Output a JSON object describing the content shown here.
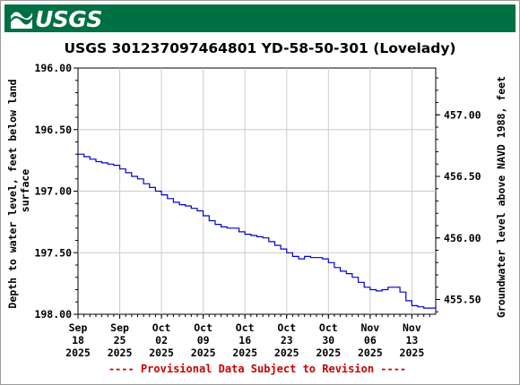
{
  "brand": {
    "logo_text": "USGS",
    "logo_icon": "usgs-wave-icon",
    "banner_color": "#006f41"
  },
  "chart_data": {
    "type": "line",
    "title": "USGS 301237097464801 YD-58-50-301 (Lovelady)",
    "ylabel_left_lines": [
      "Depth to water level, feet below land",
      "surface"
    ],
    "ylabel_right": "Groundwater level above NAVD 1988, feet",
    "footer_note": "---- Provisional Data Subject to Revision ----",
    "ylim_left": [
      196.0,
      198.0
    ],
    "y_left_inverted": true,
    "y_left_ticks": [
      "196.00",
      "196.50",
      "197.00",
      "197.50",
      "198.00"
    ],
    "ylim_right": [
      455.38,
      457.38
    ],
    "y_right_ticks": [
      "457.00",
      "456.50",
      "456.00",
      "455.50"
    ],
    "x_range": [
      "2025-09-18",
      "2025-11-17"
    ],
    "x_ticks": [
      {
        "date": "2025-09-18",
        "lines": [
          "Sep",
          "18",
          "2025"
        ]
      },
      {
        "date": "2025-09-25",
        "lines": [
          "Sep",
          "25",
          "2025"
        ]
      },
      {
        "date": "2025-10-02",
        "lines": [
          "Oct",
          "02",
          "2025"
        ]
      },
      {
        "date": "2025-10-09",
        "lines": [
          "Oct",
          "09",
          "2025"
        ]
      },
      {
        "date": "2025-10-16",
        "lines": [
          "Oct",
          "16",
          "2025"
        ]
      },
      {
        "date": "2025-10-23",
        "lines": [
          "Oct",
          "23",
          "2025"
        ]
      },
      {
        "date": "2025-10-30",
        "lines": [
          "Oct",
          "30",
          "2025"
        ]
      },
      {
        "date": "2025-11-06",
        "lines": [
          "Nov",
          "06",
          "2025"
        ]
      },
      {
        "date": "2025-11-13",
        "lines": [
          "Nov",
          "13",
          "2025"
        ]
      }
    ],
    "grid": true,
    "series": [
      {
        "color": "#0000cc",
        "points": [
          [
            "2025-09-18",
            196.7
          ],
          [
            "2025-09-19",
            196.72
          ],
          [
            "2025-09-20",
            196.74
          ],
          [
            "2025-09-21",
            196.76
          ],
          [
            "2025-09-22",
            196.77
          ],
          [
            "2025-09-23",
            196.78
          ],
          [
            "2025-09-24",
            196.79
          ],
          [
            "2025-09-25",
            196.82
          ],
          [
            "2025-09-26",
            196.85
          ],
          [
            "2025-09-27",
            196.88
          ],
          [
            "2025-09-28",
            196.9
          ],
          [
            "2025-09-29",
            196.94
          ],
          [
            "2025-09-30",
            196.97
          ],
          [
            "2025-10-01",
            197.0
          ],
          [
            "2025-10-02",
            197.03
          ],
          [
            "2025-10-03",
            197.06
          ],
          [
            "2025-10-04",
            197.09
          ],
          [
            "2025-10-05",
            197.11
          ],
          [
            "2025-10-06",
            197.12
          ],
          [
            "2025-10-07",
            197.14
          ],
          [
            "2025-10-08",
            197.16
          ],
          [
            "2025-10-09",
            197.2
          ],
          [
            "2025-10-10",
            197.24
          ],
          [
            "2025-10-11",
            197.27
          ],
          [
            "2025-10-12",
            197.29
          ],
          [
            "2025-10-13",
            197.3
          ],
          [
            "2025-10-14",
            197.3
          ],
          [
            "2025-10-15",
            197.33
          ],
          [
            "2025-10-16",
            197.35
          ],
          [
            "2025-10-17",
            197.36
          ],
          [
            "2025-10-18",
            197.37
          ],
          [
            "2025-10-19",
            197.38
          ],
          [
            "2025-10-20",
            197.41
          ],
          [
            "2025-10-21",
            197.44
          ],
          [
            "2025-10-22",
            197.47
          ],
          [
            "2025-10-23",
            197.5
          ],
          [
            "2025-10-24",
            197.53
          ],
          [
            "2025-10-25",
            197.55
          ],
          [
            "2025-10-26",
            197.53
          ],
          [
            "2025-10-27",
            197.54
          ],
          [
            "2025-10-28",
            197.54
          ],
          [
            "2025-10-29",
            197.55
          ],
          [
            "2025-10-30",
            197.58
          ],
          [
            "2025-10-31",
            197.62
          ],
          [
            "2025-11-01",
            197.65
          ],
          [
            "2025-11-02",
            197.67
          ],
          [
            "2025-11-03",
            197.7
          ],
          [
            "2025-11-04",
            197.74
          ],
          [
            "2025-11-05",
            197.78
          ],
          [
            "2025-11-06",
            197.8
          ],
          [
            "2025-11-07",
            197.81
          ],
          [
            "2025-11-08",
            197.8
          ],
          [
            "2025-11-09",
            197.78
          ],
          [
            "2025-11-10",
            197.78
          ],
          [
            "2025-11-11",
            197.82
          ],
          [
            "2025-11-12",
            197.89
          ],
          [
            "2025-11-13",
            197.93
          ],
          [
            "2025-11-14",
            197.94
          ],
          [
            "2025-11-15",
            197.95
          ],
          [
            "2025-11-16",
            197.95
          ],
          [
            "2025-11-17",
            197.93
          ]
        ]
      }
    ]
  }
}
